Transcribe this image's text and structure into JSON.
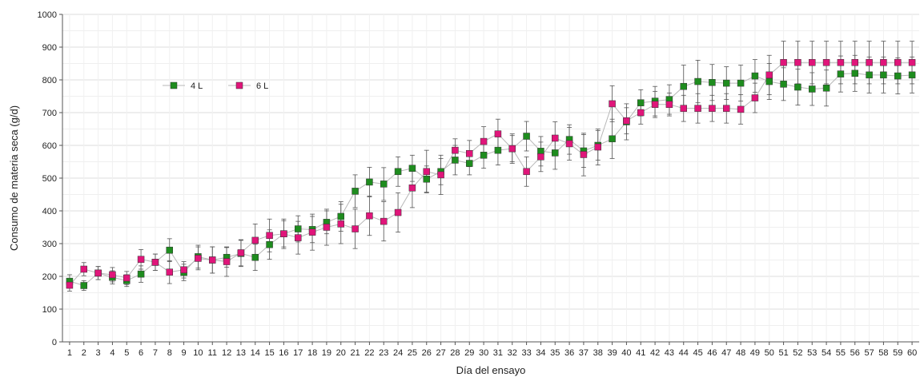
{
  "chart_data": {
    "type": "line",
    "xlabel": "Día del ensayo",
    "ylabel": "Consumo de materia seca (g/d)",
    "categories": [
      "1",
      "2",
      "3",
      "4",
      "5",
      "6",
      "7",
      "8",
      "9",
      "10",
      "11",
      "12",
      "13",
      "14",
      "15",
      "16",
      "17",
      "18",
      "19",
      "20",
      "21",
      "22",
      "23",
      "24",
      "25",
      "26",
      "27",
      "28",
      "29",
      "30",
      "31",
      "32",
      "33",
      "34",
      "35",
      "36",
      "37",
      "38",
      "39",
      "40",
      "41",
      "42",
      "43",
      "44",
      "45",
      "46",
      "47",
      "48",
      "49",
      "50",
      "51",
      "52",
      "53",
      "54",
      "55",
      "56",
      "57",
      "58",
      "59",
      "60"
    ],
    "ylim": [
      0,
      1000
    ],
    "yticks": [
      0,
      100,
      200,
      300,
      400,
      500,
      600,
      700,
      800,
      900,
      1000
    ],
    "grid": true,
    "legend_position": "upper-left",
    "series": [
      {
        "name": "4 L",
        "color": "#1e8c1e",
        "marker": "square",
        "values": [
          185,
          172,
          210,
          197,
          187,
          207,
          243,
          280,
          212,
          260,
          250,
          258,
          270,
          258,
          297,
          330,
          345,
          343,
          365,
          383,
          460,
          488,
          482,
          520,
          530,
          497,
          520,
          555,
          545,
          570,
          585,
          590,
          628,
          582,
          577,
          618,
          583,
          600,
          620,
          672,
          730,
          735,
          740,
          780,
          795,
          792,
          790,
          790,
          812,
          795,
          787,
          778,
          772,
          775,
          818,
          820,
          815,
          815,
          812,
          815
        ],
        "error": [
          20,
          15,
          20,
          20,
          18,
          25,
          25,
          35,
          25,
          35,
          40,
          30,
          40,
          40,
          45,
          40,
          40,
          40,
          35,
          45,
          50,
          45,
          50,
          45,
          40,
          40,
          40,
          45,
          35,
          40,
          45,
          40,
          45,
          45,
          50,
          45,
          50,
          45,
          60,
          55,
          40,
          45,
          45,
          65,
          65,
          55,
          50,
          55,
          50,
          55,
          50,
          55,
          50,
          55,
          55,
          55,
          55,
          55,
          55,
          55
        ]
      },
      {
        "name": "6 L",
        "color": "#e0157a",
        "marker": "square",
        "values": [
          173,
          222,
          210,
          205,
          195,
          252,
          243,
          213,
          220,
          255,
          250,
          245,
          272,
          310,
          325,
          330,
          318,
          335,
          350,
          360,
          345,
          385,
          368,
          395,
          470,
          520,
          510,
          585,
          575,
          612,
          635,
          590,
          520,
          565,
          622,
          605,
          572,
          595,
          727,
          675,
          700,
          725,
          725,
          713,
          713,
          713,
          713,
          710,
          745,
          815,
          853,
          853,
          853,
          853,
          853,
          853,
          853,
          853,
          853,
          853
        ],
        "error": [
          18,
          20,
          20,
          22,
          20,
          30,
          25,
          35,
          25,
          35,
          40,
          45,
          40,
          50,
          50,
          45,
          50,
          55,
          55,
          60,
          60,
          60,
          60,
          60,
          60,
          65,
          60,
          35,
          40,
          45,
          45,
          45,
          45,
          45,
          50,
          50,
          65,
          55,
          55,
          40,
          35,
          40,
          35,
          40,
          45,
          40,
          45,
          45,
          45,
          60,
          65,
          65,
          65,
          65,
          65,
          65,
          65,
          65,
          65,
          65
        ]
      }
    ]
  }
}
